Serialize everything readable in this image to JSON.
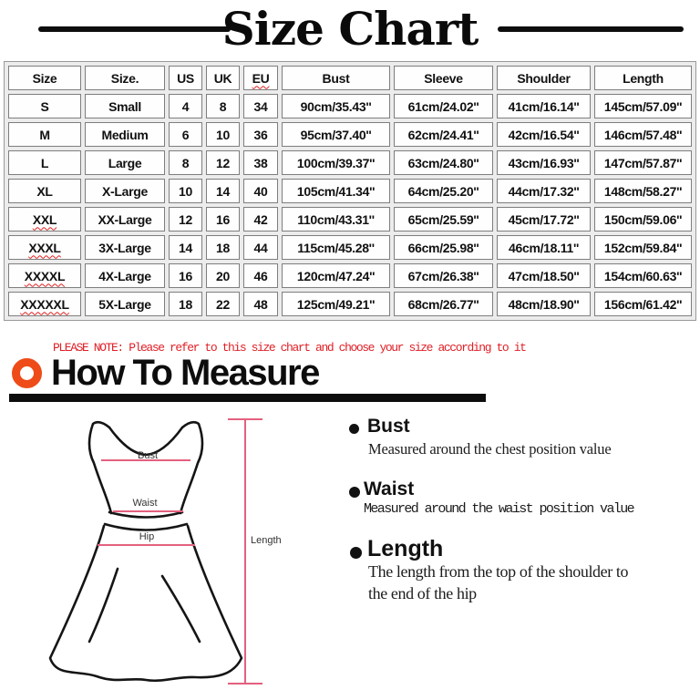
{
  "title": "Size Chart",
  "size_table": {
    "columns": [
      "Size",
      "Size.",
      "US",
      "UK",
      "EU",
      "Bust",
      "Sleeve",
      "Shoulder",
      "Length"
    ],
    "header_misspelled": [
      4
    ],
    "rows": [
      {
        "cells": [
          "S",
          "Small",
          "4",
          "8",
          "34",
          "90cm/35.43''",
          "61cm/24.02''",
          "41cm/16.14''",
          "145cm/57.09''"
        ],
        "misspelled": []
      },
      {
        "cells": [
          "M",
          "Medium",
          "6",
          "10",
          "36",
          "95cm/37.40''",
          "62cm/24.41''",
          "42cm/16.54''",
          "146cm/57.48''"
        ],
        "misspelled": []
      },
      {
        "cells": [
          "L",
          "Large",
          "8",
          "12",
          "38",
          "100cm/39.37''",
          "63cm/24.80''",
          "43cm/16.93''",
          "147cm/57.87''"
        ],
        "misspelled": []
      },
      {
        "cells": [
          "XL",
          "X-Large",
          "10",
          "14",
          "40",
          "105cm/41.34''",
          "64cm/25.20''",
          "44cm/17.32''",
          "148cm/58.27''"
        ],
        "misspelled": []
      },
      {
        "cells": [
          "XXL",
          "XX-Large",
          "12",
          "16",
          "42",
          "110cm/43.31''",
          "65cm/25.59''",
          "45cm/17.72''",
          "150cm/59.06''"
        ],
        "misspelled": [
          0
        ]
      },
      {
        "cells": [
          "XXXL",
          "3X-Large",
          "14",
          "18",
          "44",
          "115cm/45.28''",
          "66cm/25.98''",
          "46cm/18.11''",
          "152cm/59.84''"
        ],
        "misspelled": [
          0
        ]
      },
      {
        "cells": [
          "XXXXL",
          "4X-Large",
          "16",
          "20",
          "46",
          "120cm/47.24''",
          "67cm/26.38''",
          "47cm/18.50''",
          "154cm/60.63''"
        ],
        "misspelled": [
          0
        ]
      },
      {
        "cells": [
          "XXXXXL",
          "5X-Large",
          "18",
          "22",
          "48",
          "125cm/49.21''",
          "68cm/26.77''",
          "48cm/18.90''",
          "156cm/61.42''"
        ],
        "misspelled": [
          0
        ]
      }
    ]
  },
  "note": "PLEASE NOTE: Please refer to this size chart and choose your size according to it",
  "how_to_measure": {
    "heading": "How To Measure"
  },
  "figure_labels": {
    "bust": "Bust",
    "waist": "Waist",
    "hip": "Hip",
    "length": "Length"
  },
  "measure_points": [
    {
      "term": "Bust",
      "desc": "Measured around the chest position value"
    },
    {
      "term": "Waist",
      "desc": "Measured around the waist position value"
    },
    {
      "term": "Length",
      "desc": "The length from the top of the shoulder to the end of the hip"
    }
  ],
  "colors": {
    "note_red": "#e01e25",
    "spellcheck_red": "#e02020",
    "ring_orange": "#ee4b19",
    "measure_pink": "#e4607e",
    "ink_black": "#0d0d0d"
  }
}
